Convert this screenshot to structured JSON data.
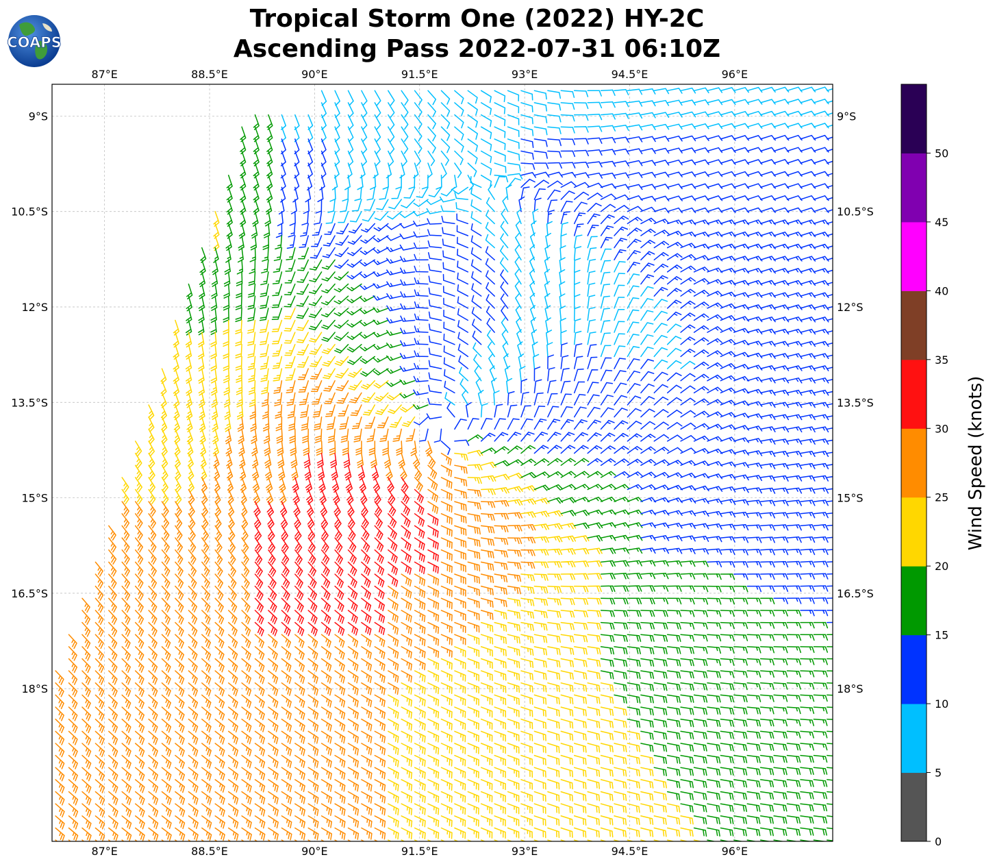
{
  "title": {
    "line1": "Tropical Storm One (2022) HY-2C",
    "line2": "Ascending Pass 2022-07-31 06:10Z"
  },
  "logo": {
    "text": "COAPS",
    "icon": "globe-logo-icon"
  },
  "map": {
    "lon_range": [
      86.25,
      97.4
    ],
    "lat_range": [
      -20.4,
      -8.5
    ],
    "lon_ticks": [
      "87°E",
      "88.5°E",
      "90°E",
      "91.5°E",
      "93°E",
      "94.5°E",
      "96°E"
    ],
    "lon_tick_values": [
      87,
      88.5,
      90,
      91.5,
      93,
      94.5,
      96
    ],
    "lat_ticks": [
      "9°S",
      "10.5°S",
      "12°S",
      "13.5°S",
      "15°S",
      "16.5°S",
      "18°S"
    ],
    "lat_tick_values": [
      -9,
      -10.5,
      -12,
      -13.5,
      -15,
      -16.5,
      -18
    ],
    "gridlines": true
  },
  "chart_data": {
    "type": "wind-barbs",
    "storm_center": {
      "lon": 91.9,
      "lat": -13.9
    },
    "circulation": "clockwise (southern hemisphere)",
    "swath_edge_note": "",
    "wind_regions": [
      {
        "area": "outer west / south-west",
        "speed_kt": "20-30"
      },
      {
        "area": "south-west of center",
        "speed_kt": "30-35"
      },
      {
        "area": "north-east quadrant",
        "speed_kt": "10-15"
      },
      {
        "area": "far north near 90.5°E",
        "speed_kt": "5-10"
      }
    ]
  },
  "colorbar": {
    "label": "Wind Speed (knots)",
    "ticks": [
      "0",
      "5",
      "10",
      "15",
      "20",
      "25",
      "30",
      "35",
      "40",
      "45",
      "50"
    ],
    "bins": [
      {
        "min": 0,
        "max": 5,
        "color": "#555555"
      },
      {
        "min": 5,
        "max": 10,
        "color": "#00bfff"
      },
      {
        "min": 10,
        "max": 15,
        "color": "#0033ff"
      },
      {
        "min": 15,
        "max": 20,
        "color": "#009900"
      },
      {
        "min": 20,
        "max": 25,
        "color": "#ffd700"
      },
      {
        "min": 25,
        "max": 30,
        "color": "#ff8c00"
      },
      {
        "min": 30,
        "max": 35,
        "color": "#ff1111"
      },
      {
        "min": 35,
        "max": 40,
        "color": "#7f3f26"
      },
      {
        "min": 40,
        "max": 45,
        "color": "#ff00ff"
      },
      {
        "min": 45,
        "max": 50,
        "color": "#8000b0"
      },
      {
        "min": 50,
        "max": 55,
        "color": "#2a0055"
      }
    ]
  }
}
